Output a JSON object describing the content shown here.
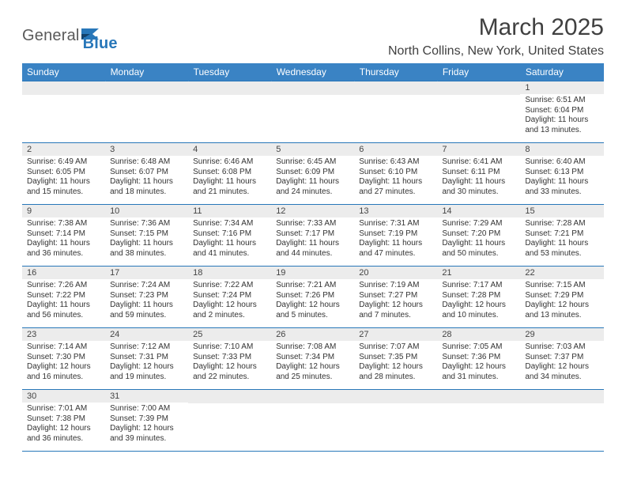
{
  "brand": {
    "name_part1": "General",
    "name_part2": "Blue"
  },
  "title": "March 2025",
  "location": "North Collins, New York, United States",
  "colors": {
    "header_bg": "#3a83c4",
    "accent": "#2877b9",
    "daynum_bg": "#ececec"
  },
  "weekdays": [
    "Sunday",
    "Monday",
    "Tuesday",
    "Wednesday",
    "Thursday",
    "Friday",
    "Saturday"
  ],
  "weeks": [
    [
      null,
      null,
      null,
      null,
      null,
      null,
      {
        "d": "1",
        "sr": "Sunrise: 6:51 AM",
        "ss": "Sunset: 6:04 PM",
        "dl1": "Daylight: 11 hours",
        "dl2": "and 13 minutes."
      }
    ],
    [
      {
        "d": "2",
        "sr": "Sunrise: 6:49 AM",
        "ss": "Sunset: 6:05 PM",
        "dl1": "Daylight: 11 hours",
        "dl2": "and 15 minutes."
      },
      {
        "d": "3",
        "sr": "Sunrise: 6:48 AM",
        "ss": "Sunset: 6:07 PM",
        "dl1": "Daylight: 11 hours",
        "dl2": "and 18 minutes."
      },
      {
        "d": "4",
        "sr": "Sunrise: 6:46 AM",
        "ss": "Sunset: 6:08 PM",
        "dl1": "Daylight: 11 hours",
        "dl2": "and 21 minutes."
      },
      {
        "d": "5",
        "sr": "Sunrise: 6:45 AM",
        "ss": "Sunset: 6:09 PM",
        "dl1": "Daylight: 11 hours",
        "dl2": "and 24 minutes."
      },
      {
        "d": "6",
        "sr": "Sunrise: 6:43 AM",
        "ss": "Sunset: 6:10 PM",
        "dl1": "Daylight: 11 hours",
        "dl2": "and 27 minutes."
      },
      {
        "d": "7",
        "sr": "Sunrise: 6:41 AM",
        "ss": "Sunset: 6:11 PM",
        "dl1": "Daylight: 11 hours",
        "dl2": "and 30 minutes."
      },
      {
        "d": "8",
        "sr": "Sunrise: 6:40 AM",
        "ss": "Sunset: 6:13 PM",
        "dl1": "Daylight: 11 hours",
        "dl2": "and 33 minutes."
      }
    ],
    [
      {
        "d": "9",
        "sr": "Sunrise: 7:38 AM",
        "ss": "Sunset: 7:14 PM",
        "dl1": "Daylight: 11 hours",
        "dl2": "and 36 minutes."
      },
      {
        "d": "10",
        "sr": "Sunrise: 7:36 AM",
        "ss": "Sunset: 7:15 PM",
        "dl1": "Daylight: 11 hours",
        "dl2": "and 38 minutes."
      },
      {
        "d": "11",
        "sr": "Sunrise: 7:34 AM",
        "ss": "Sunset: 7:16 PM",
        "dl1": "Daylight: 11 hours",
        "dl2": "and 41 minutes."
      },
      {
        "d": "12",
        "sr": "Sunrise: 7:33 AM",
        "ss": "Sunset: 7:17 PM",
        "dl1": "Daylight: 11 hours",
        "dl2": "and 44 minutes."
      },
      {
        "d": "13",
        "sr": "Sunrise: 7:31 AM",
        "ss": "Sunset: 7:19 PM",
        "dl1": "Daylight: 11 hours",
        "dl2": "and 47 minutes."
      },
      {
        "d": "14",
        "sr": "Sunrise: 7:29 AM",
        "ss": "Sunset: 7:20 PM",
        "dl1": "Daylight: 11 hours",
        "dl2": "and 50 minutes."
      },
      {
        "d": "15",
        "sr": "Sunrise: 7:28 AM",
        "ss": "Sunset: 7:21 PM",
        "dl1": "Daylight: 11 hours",
        "dl2": "and 53 minutes."
      }
    ],
    [
      {
        "d": "16",
        "sr": "Sunrise: 7:26 AM",
        "ss": "Sunset: 7:22 PM",
        "dl1": "Daylight: 11 hours",
        "dl2": "and 56 minutes."
      },
      {
        "d": "17",
        "sr": "Sunrise: 7:24 AM",
        "ss": "Sunset: 7:23 PM",
        "dl1": "Daylight: 11 hours",
        "dl2": "and 59 minutes."
      },
      {
        "d": "18",
        "sr": "Sunrise: 7:22 AM",
        "ss": "Sunset: 7:24 PM",
        "dl1": "Daylight: 12 hours",
        "dl2": "and 2 minutes."
      },
      {
        "d": "19",
        "sr": "Sunrise: 7:21 AM",
        "ss": "Sunset: 7:26 PM",
        "dl1": "Daylight: 12 hours",
        "dl2": "and 5 minutes."
      },
      {
        "d": "20",
        "sr": "Sunrise: 7:19 AM",
        "ss": "Sunset: 7:27 PM",
        "dl1": "Daylight: 12 hours",
        "dl2": "and 7 minutes."
      },
      {
        "d": "21",
        "sr": "Sunrise: 7:17 AM",
        "ss": "Sunset: 7:28 PM",
        "dl1": "Daylight: 12 hours",
        "dl2": "and 10 minutes."
      },
      {
        "d": "22",
        "sr": "Sunrise: 7:15 AM",
        "ss": "Sunset: 7:29 PM",
        "dl1": "Daylight: 12 hours",
        "dl2": "and 13 minutes."
      }
    ],
    [
      {
        "d": "23",
        "sr": "Sunrise: 7:14 AM",
        "ss": "Sunset: 7:30 PM",
        "dl1": "Daylight: 12 hours",
        "dl2": "and 16 minutes."
      },
      {
        "d": "24",
        "sr": "Sunrise: 7:12 AM",
        "ss": "Sunset: 7:31 PM",
        "dl1": "Daylight: 12 hours",
        "dl2": "and 19 minutes."
      },
      {
        "d": "25",
        "sr": "Sunrise: 7:10 AM",
        "ss": "Sunset: 7:33 PM",
        "dl1": "Daylight: 12 hours",
        "dl2": "and 22 minutes."
      },
      {
        "d": "26",
        "sr": "Sunrise: 7:08 AM",
        "ss": "Sunset: 7:34 PM",
        "dl1": "Daylight: 12 hours",
        "dl2": "and 25 minutes."
      },
      {
        "d": "27",
        "sr": "Sunrise: 7:07 AM",
        "ss": "Sunset: 7:35 PM",
        "dl1": "Daylight: 12 hours",
        "dl2": "and 28 minutes."
      },
      {
        "d": "28",
        "sr": "Sunrise: 7:05 AM",
        "ss": "Sunset: 7:36 PM",
        "dl1": "Daylight: 12 hours",
        "dl2": "and 31 minutes."
      },
      {
        "d": "29",
        "sr": "Sunrise: 7:03 AM",
        "ss": "Sunset: 7:37 PM",
        "dl1": "Daylight: 12 hours",
        "dl2": "and 34 minutes."
      }
    ],
    [
      {
        "d": "30",
        "sr": "Sunrise: 7:01 AM",
        "ss": "Sunset: 7:38 PM",
        "dl1": "Daylight: 12 hours",
        "dl2": "and 36 minutes."
      },
      {
        "d": "31",
        "sr": "Sunrise: 7:00 AM",
        "ss": "Sunset: 7:39 PM",
        "dl1": "Daylight: 12 hours",
        "dl2": "and 39 minutes."
      },
      null,
      null,
      null,
      null,
      null
    ]
  ]
}
